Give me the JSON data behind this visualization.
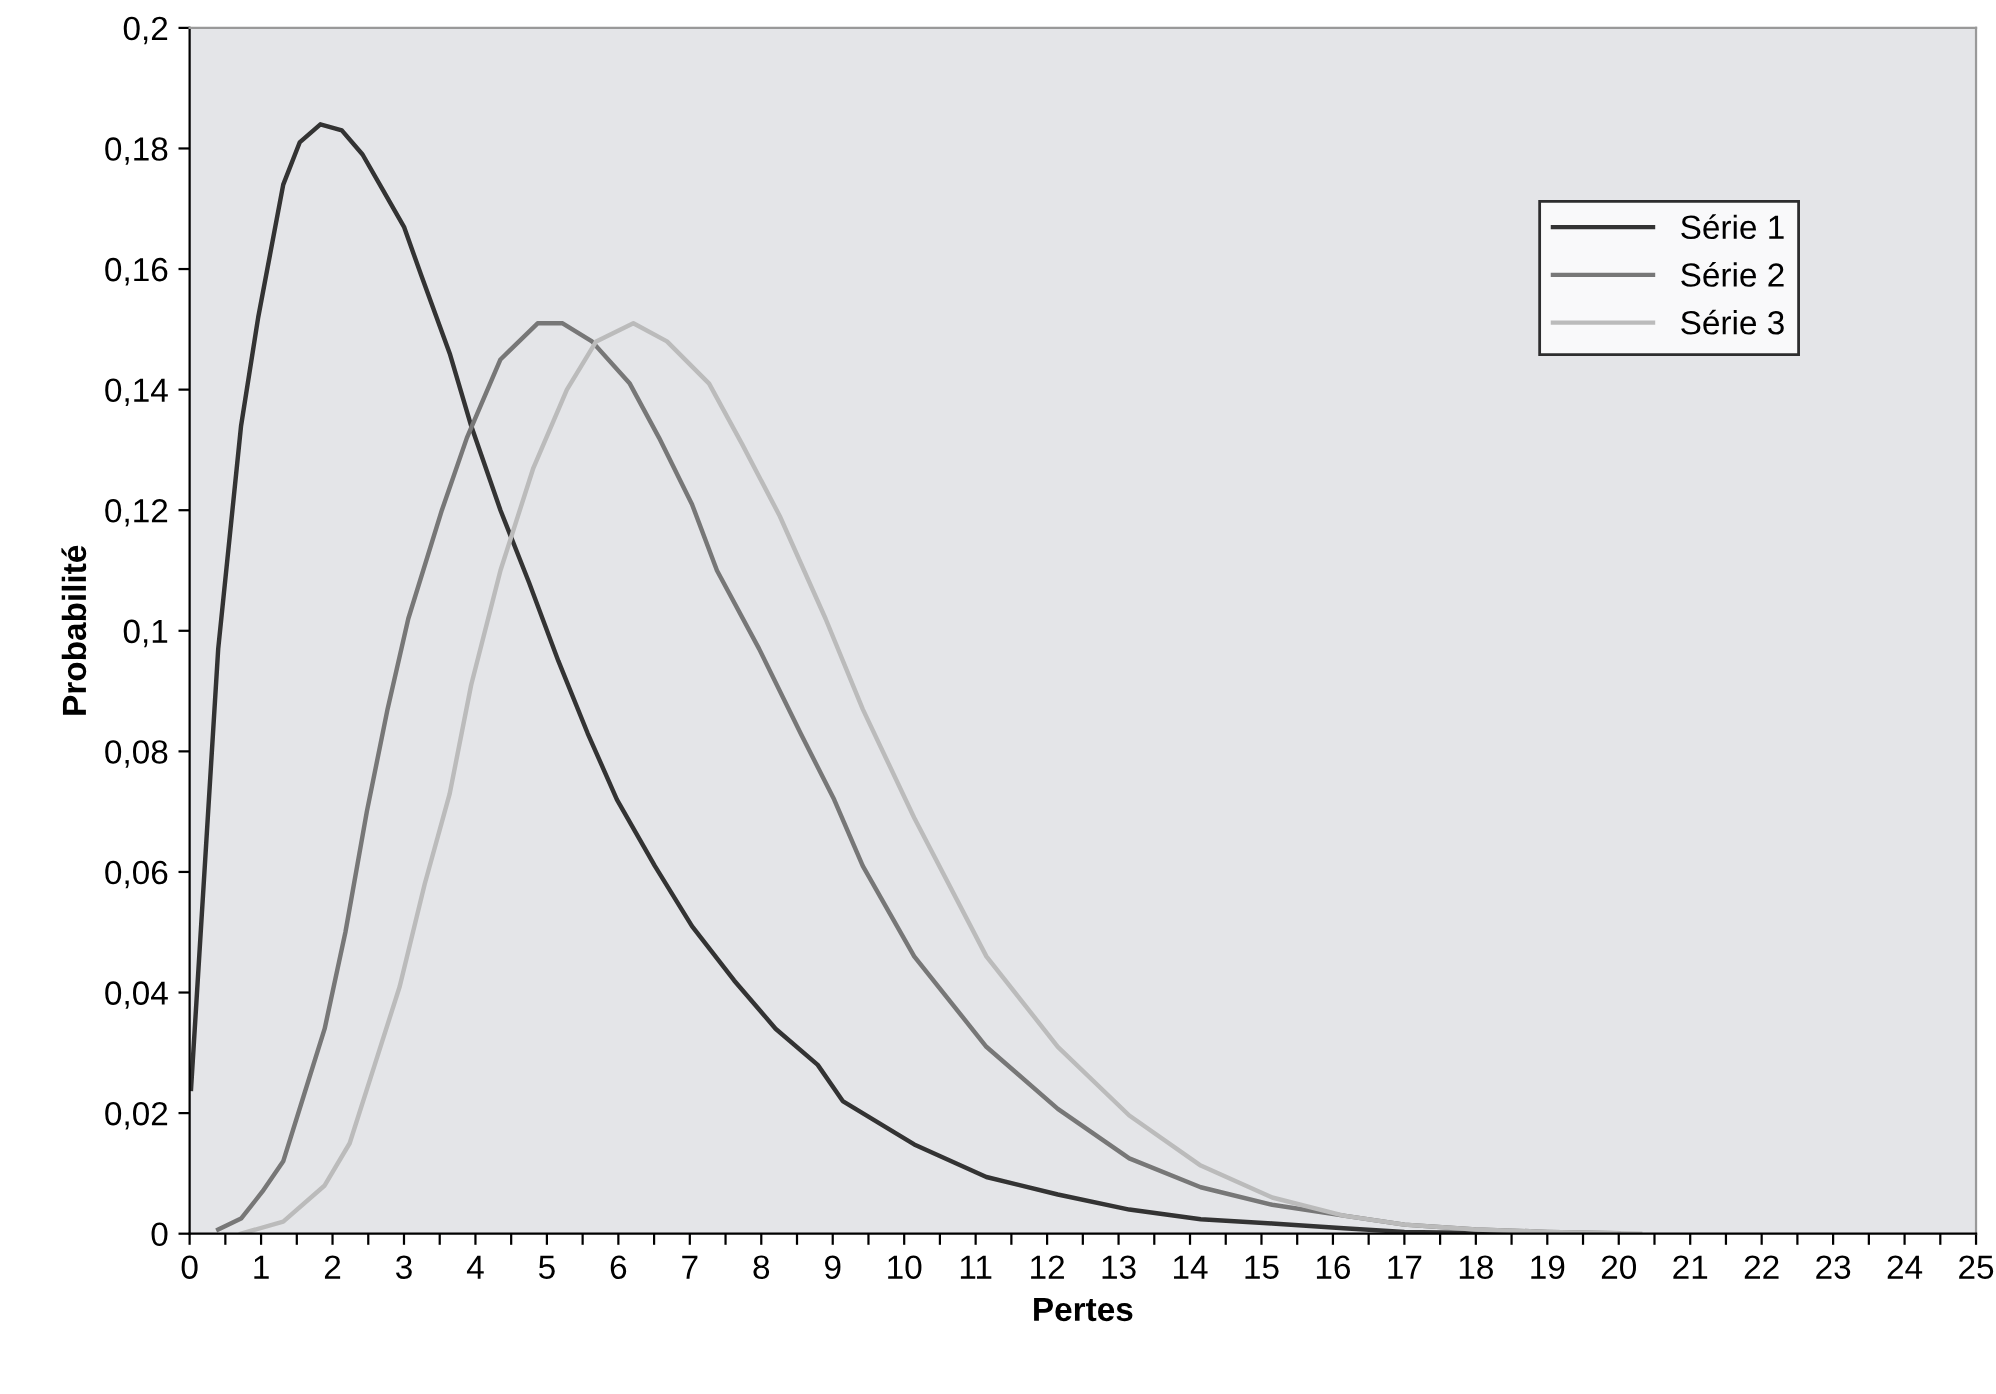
{
  "chart_data": {
    "type": "line",
    "xlabel": "Pertes",
    "ylabel": "Probabilité",
    "xlim": [
      0,
      25
    ],
    "ylim": [
      0,
      0.2
    ],
    "xticks": [
      0,
      {
        "value": 0.5,
        "label": null
      },
      1,
      {
        "value": 1.5,
        "label": null
      },
      2,
      {
        "value": 2.5,
        "label": null
      },
      3,
      {
        "value": 3.5,
        "label": null
      },
      4,
      {
        "value": 4.5,
        "label": null
      },
      5,
      {
        "value": 5.5,
        "label": null
      },
      6,
      {
        "value": 6.5,
        "label": null
      },
      7,
      {
        "value": 7.5,
        "label": null
      },
      8,
      {
        "value": 8.5,
        "label": null
      },
      9,
      {
        "value": 9.5,
        "label": null
      },
      10,
      {
        "value": 10.5,
        "label": null
      },
      11,
      {
        "value": 11.5,
        "label": null
      },
      12,
      {
        "value": 12.5,
        "label": null
      },
      13,
      {
        "value": 13.5,
        "label": null
      },
      14,
      {
        "value": 14.5,
        "label": null
      },
      15,
      {
        "value": 15.5,
        "label": null
      },
      16,
      {
        "value": 16.5,
        "label": null
      },
      17,
      {
        "value": 17.5,
        "label": null
      },
      18,
      {
        "value": 18.5,
        "label": null
      },
      19,
      {
        "value": 19.5,
        "label": null
      },
      20,
      {
        "value": 20.5,
        "label": null
      },
      21,
      {
        "value": 21.5,
        "label": null
      },
      22,
      {
        "value": 22.5,
        "label": null
      },
      23,
      {
        "value": 23.5,
        "label": null
      },
      24,
      {
        "value": 24.5,
        "label": null
      },
      25
    ],
    "yticks": [
      0,
      {
        "value": 0.02,
        "label": "0,02"
      },
      {
        "value": 0.04,
        "label": "0,04"
      },
      {
        "value": 0.06,
        "label": "0,06"
      },
      {
        "value": 0.08,
        "label": "0,08"
      },
      {
        "value": 0.1,
        "label": "0,1"
      },
      {
        "value": 0.12,
        "label": "0,12"
      },
      {
        "value": 0.14,
        "label": "0,14"
      },
      {
        "value": 0.16,
        "label": "0,16"
      },
      {
        "value": 0.18,
        "label": "0,18"
      },
      {
        "value": 0.2,
        "label": "0,2"
      }
    ],
    "legend": "top right",
    "grid": false,
    "marker": "none",
    "line_style": "solid",
    "series": [
      {
        "name": "Série 1",
        "color": "#333333",
        "x": [
          0.02,
          0.4,
          0.72,
          0.96,
          1.31,
          1.54,
          1.83,
          2.13,
          2.42,
          2.71,
          3.0,
          3.24,
          3.64,
          3.94,
          4.35,
          4.75,
          5.16,
          5.57,
          5.98,
          6.51,
          7.03,
          7.62,
          8.2,
          8.79,
          9.14,
          10.14,
          11.15,
          12.15,
          13.15,
          14.15,
          15.15,
          16.15,
          17,
          18,
          19
        ],
        "values": [
          0.024,
          0.097,
          0.134,
          0.152,
          0.174,
          0.181,
          0.184,
          0.183,
          0.179,
          0.173,
          0.167,
          0.159,
          0.146,
          0.134,
          0.12,
          0.108,
          0.095,
          0.083,
          0.072,
          0.061,
          0.051,
          0.042,
          0.034,
          0.028,
          0.022,
          0.0148,
          0.0094,
          0.0065,
          0.004,
          0.0024,
          0.0017,
          0.0009,
          0.0003,
          0.0001,
          0
        ]
      },
      {
        "name": "Série 2",
        "color": "#777777",
        "x": [
          0.4,
          0.72,
          1.02,
          1.31,
          1.6,
          1.89,
          2.18,
          2.48,
          2.77,
          3.06,
          3.53,
          3.88,
          4.35,
          4.87,
          5.22,
          5.63,
          6.16,
          6.57,
          7.03,
          7.38,
          7.97,
          8.55,
          9.02,
          9.42,
          10.14,
          11.15,
          12.15,
          13.15,
          14.15,
          15.15,
          16.15,
          17,
          18,
          19,
          20
        ],
        "values": [
          0.0007,
          0.0025,
          0.007,
          0.012,
          0.023,
          0.034,
          0.05,
          0.07,
          0.087,
          0.102,
          0.12,
          0.132,
          0.145,
          0.151,
          0.151,
          0.148,
          0.141,
          0.132,
          0.121,
          0.11,
          0.097,
          0.083,
          0.072,
          0.061,
          0.046,
          0.031,
          0.0207,
          0.0125,
          0.0077,
          0.0048,
          0.003,
          0.0015,
          0.0007,
          0.0003,
          0.0001
        ]
      },
      {
        "name": "Série 3",
        "color": "#bbbbbb",
        "x": [
          0.72,
          1.31,
          1.89,
          2.24,
          2.59,
          2.94,
          3.29,
          3.64,
          3.94,
          4.35,
          4.81,
          5.28,
          5.69,
          6.21,
          6.68,
          7.27,
          7.73,
          8.26,
          8.9,
          9.42,
          10.14,
          11.15,
          12.15,
          13.15,
          14.15,
          15.15,
          16.15,
          17,
          18,
          19,
          20.3
        ],
        "values": [
          0,
          0.002,
          0.008,
          0.015,
          0.028,
          0.041,
          0.058,
          0.073,
          0.091,
          0.11,
          0.127,
          0.14,
          0.148,
          0.151,
          0.148,
          0.141,
          0.131,
          0.119,
          0.102,
          0.087,
          0.069,
          0.046,
          0.031,
          0.0196,
          0.0113,
          0.006,
          0.003,
          0.0015,
          0.0007,
          0.0003,
          0
        ]
      }
    ]
  }
}
